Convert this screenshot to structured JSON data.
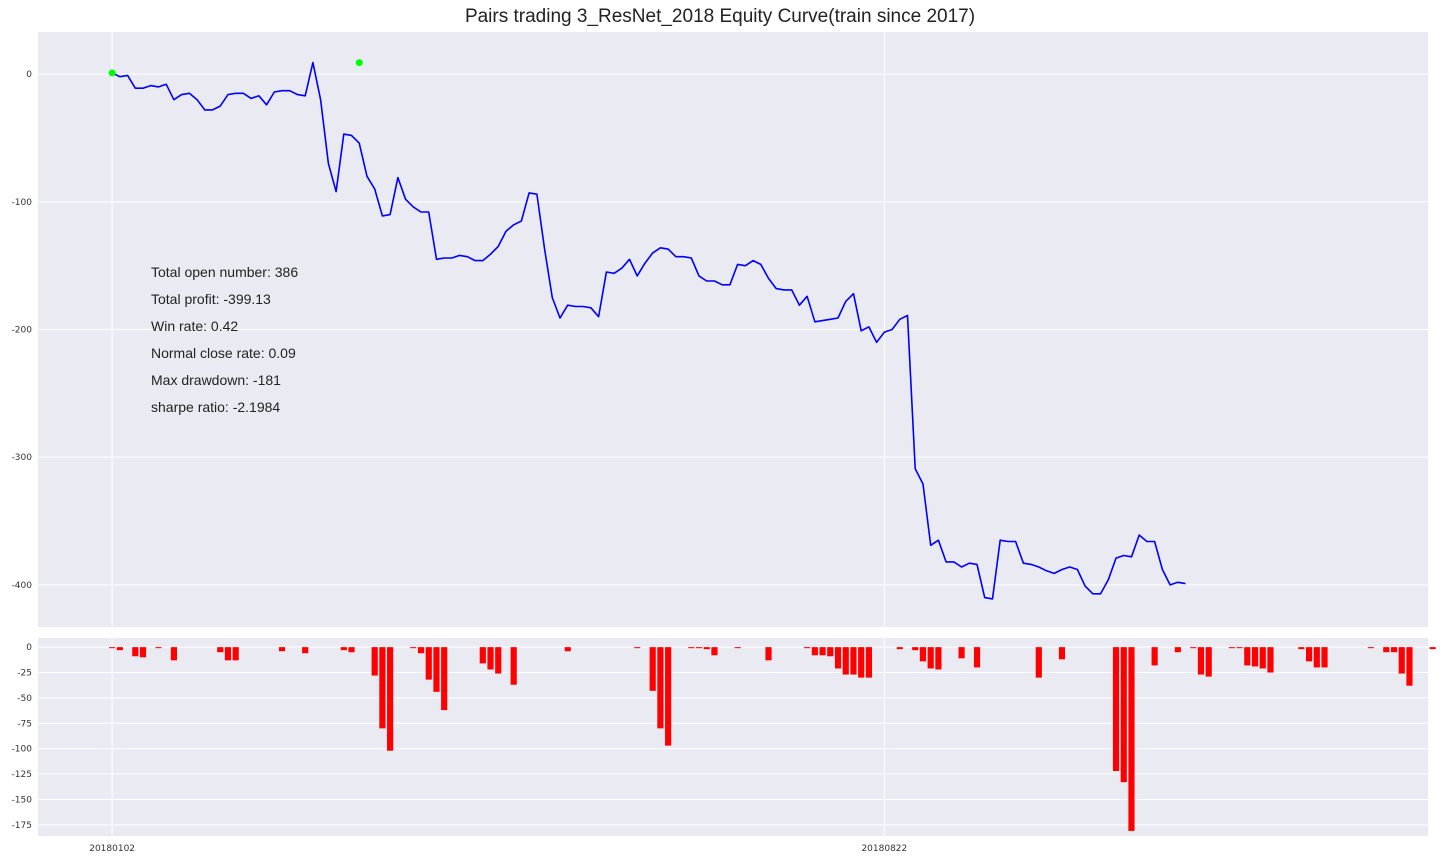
{
  "colors": {
    "plot_bg": "#eaeaf2",
    "grid": "#ffffff",
    "equity_line": "#0000ff",
    "peak_marker": "#00ff00",
    "drawdown_bar": "#ff0000"
  },
  "chart_data": [
    {
      "type": "line",
      "title": "Pairs trading 3_ResNet_2018 Equity Curve(train since 2017)",
      "xlabel": "",
      "ylabel": "",
      "ylim": [
        -433,
        33
      ],
      "yticks": [
        0,
        -100,
        -200,
        -300,
        -400
      ],
      "xlim": [
        -9.6,
        170.4
      ],
      "xticks": [
        {
          "x": 0,
          "label": "20180102"
        },
        {
          "x": 100,
          "label": "20180822"
        }
      ],
      "grid": true,
      "series": [
        {
          "values": [
            1,
            -2,
            -1,
            -11,
            -11,
            -9,
            -10,
            -8,
            -20,
            -16,
            -15,
            -20,
            -28,
            -28,
            -25,
            -16,
            -15,
            -15,
            -19,
            -17,
            -24,
            -14,
            -13,
            -13,
            -16,
            -17,
            9,
            -20,
            -70,
            -92,
            -47,
            -48,
            -54,
            -80,
            -90,
            -111,
            -110,
            -81,
            -98,
            -104,
            -108,
            -108,
            -145,
            -144,
            -144,
            -142,
            -143,
            -146,
            -146,
            -141,
            -135,
            -123,
            -118,
            -115,
            -93,
            -94,
            -137,
            -175,
            -191,
            -181,
            -182,
            -182,
            -183,
            -190,
            -155,
            -156,
            -152,
            -145,
            -158,
            -148,
            -140,
            -136,
            -137,
            -143,
            -143,
            -144,
            -158,
            -162,
            -162,
            -165,
            -165,
            -149,
            -150,
            -146,
            -149,
            -160,
            -168,
            -169,
            -169,
            -181,
            -174,
            -194,
            -193,
            -192,
            -191,
            -178,
            -172,
            -201,
            -198,
            -210,
            -202,
            -200,
            -192,
            -189,
            -309,
            -321,
            -369,
            -365,
            -382,
            -382,
            -386,
            -383,
            -384,
            -410,
            -411,
            -365,
            -366,
            -366,
            -383,
            -384,
            -386,
            -389,
            -391,
            -388,
            -386,
            -388,
            -401,
            -407,
            -407,
            -396,
            -379,
            -377,
            -378,
            -361,
            -366,
            -366,
            -388,
            -400,
            -398,
            -399
          ]
        }
      ],
      "markers": [
        {
          "x": 0,
          "y": 1
        },
        {
          "x": 32,
          "y": 9
        }
      ],
      "annotations": [
        "Total open number: 386",
        "Total profit: -399.13",
        "Win rate: 0.42",
        "Normal close rate: 0.09",
        "Max drawdown: -181",
        "sharpe ratio: -2.1984"
      ]
    },
    {
      "type": "bar",
      "ylim": [
        -186,
        9
      ],
      "yticks": [
        0,
        -25,
        -50,
        -75,
        -100,
        -125,
        -150,
        -175
      ],
      "xticks": [
        {
          "x": 0,
          "label": "20180102"
        },
        {
          "x": 100,
          "label": "20180822"
        }
      ],
      "grid": true,
      "bars": [
        {
          "x": 0,
          "y": -1
        },
        {
          "x": 1,
          "y": -3
        },
        {
          "x": 3,
          "y": -9
        },
        {
          "x": 4,
          "y": -10
        },
        {
          "x": 6,
          "y": -1
        },
        {
          "x": 8,
          "y": -13
        },
        {
          "x": 14,
          "y": -5
        },
        {
          "x": 15,
          "y": -13
        },
        {
          "x": 16,
          "y": -13
        },
        {
          "x": 22,
          "y": -4
        },
        {
          "x": 25,
          "y": -6
        },
        {
          "x": 30,
          "y": -3
        },
        {
          "x": 31,
          "y": -5
        },
        {
          "x": 34,
          "y": -28
        },
        {
          "x": 35,
          "y": -80
        },
        {
          "x": 36,
          "y": -102
        },
        {
          "x": 39,
          "y": -1
        },
        {
          "x": 40,
          "y": -6
        },
        {
          "x": 41,
          "y": -32
        },
        {
          "x": 42,
          "y": -44
        },
        {
          "x": 43,
          "y": -62
        },
        {
          "x": 48,
          "y": -16
        },
        {
          "x": 49,
          "y": -22
        },
        {
          "x": 50,
          "y": -26
        },
        {
          "x": 52,
          "y": -37
        },
        {
          "x": 59,
          "y": -4
        },
        {
          "x": 68,
          "y": -1
        },
        {
          "x": 70,
          "y": -43
        },
        {
          "x": 71,
          "y": -80
        },
        {
          "x": 72,
          "y": -97
        },
        {
          "x": 75,
          "y": -1
        },
        {
          "x": 76,
          "y": -1
        },
        {
          "x": 77,
          "y": -2
        },
        {
          "x": 78,
          "y": -8
        },
        {
          "x": 81,
          "y": -1
        },
        {
          "x": 85,
          "y": -13
        },
        {
          "x": 90,
          "y": -1
        },
        {
          "x": 91,
          "y": -8
        },
        {
          "x": 92,
          "y": -8
        },
        {
          "x": 93,
          "y": -9
        },
        {
          "x": 94,
          "y": -21
        },
        {
          "x": 95,
          "y": -27
        },
        {
          "x": 96,
          "y": -27
        },
        {
          "x": 97,
          "y": -30
        },
        {
          "x": 98,
          "y": -30
        },
        {
          "x": 102,
          "y": -2
        },
        {
          "x": 104,
          "y": -3
        },
        {
          "x": 105,
          "y": -14
        },
        {
          "x": 106,
          "y": -21
        },
        {
          "x": 107,
          "y": -22
        },
        {
          "x": 110,
          "y": -11
        },
        {
          "x": 112,
          "y": -20
        },
        {
          "x": 120,
          "y": -30
        },
        {
          "x": 123,
          "y": -12
        },
        {
          "x": 130,
          "y": -122
        },
        {
          "x": 131,
          "y": -133
        },
        {
          "x": 132,
          "y": -181
        },
        {
          "x": 135,
          "y": -18
        },
        {
          "x": 138,
          "y": -5
        },
        {
          "x": 140,
          "y": -1
        },
        {
          "x": 141,
          "y": -27
        },
        {
          "x": 142,
          "y": -29
        },
        {
          "x": 145,
          "y": -1
        },
        {
          "x": 146,
          "y": -1
        },
        {
          "x": 147,
          "y": -18
        },
        {
          "x": 148,
          "y": -19
        },
        {
          "x": 149,
          "y": -21
        },
        {
          "x": 150,
          "y": -25
        },
        {
          "x": 154,
          "y": -2
        },
        {
          "x": 155,
          "y": -14
        },
        {
          "x": 156,
          "y": -20
        },
        {
          "x": 157,
          "y": -20
        },
        {
          "x": 163,
          "y": -1
        },
        {
          "x": 165,
          "y": -5
        },
        {
          "x": 166,
          "y": -5
        },
        {
          "x": 167,
          "y": -26
        },
        {
          "x": 168,
          "y": -38
        },
        {
          "x": 171,
          "y": -2
        }
      ]
    }
  ]
}
